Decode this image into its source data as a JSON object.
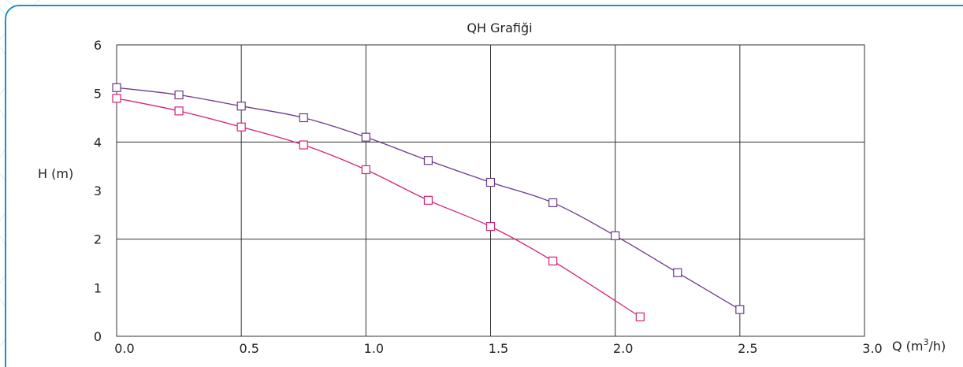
{
  "colors": {
    "frame": "#1f8fd0",
    "grid": "#333333",
    "series_purple": "#6b3a8c",
    "series_magenta": "#d4237a"
  },
  "chart_data": {
    "type": "line",
    "title": "QH Grafiği",
    "xlabel": "Q (m",
    "xlabel_sup": "3",
    "xlabel_end": "/h)",
    "ylabel": "H (m)",
    "xlim": [
      0,
      3
    ],
    "ylim": [
      0,
      6
    ],
    "x_ticks": [
      "0.0",
      "0.5",
      "1.0",
      "1.5",
      "2.0",
      "2.5",
      "3.0"
    ],
    "y_ticks": [
      "0",
      "1",
      "2",
      "3",
      "4",
      "5",
      "6"
    ],
    "grid": true,
    "series": [
      {
        "color": "#6b3a8c",
        "x": [
          0.0,
          0.25,
          0.5,
          0.75,
          1.0,
          1.25,
          1.5,
          1.75,
          2.0,
          2.25,
          2.5
        ],
        "y": [
          5.12,
          4.97,
          4.74,
          4.5,
          4.1,
          3.62,
          3.17,
          2.75,
          2.07,
          1.31,
          0.55
        ]
      },
      {
        "color": "#d4237a",
        "x": [
          0.0,
          0.25,
          0.5,
          0.75,
          1.0,
          1.25,
          1.5,
          1.75,
          2.1
        ],
        "y": [
          4.9,
          4.64,
          4.31,
          3.94,
          3.43,
          2.8,
          2.26,
          1.55,
          0.4
        ]
      }
    ]
  }
}
